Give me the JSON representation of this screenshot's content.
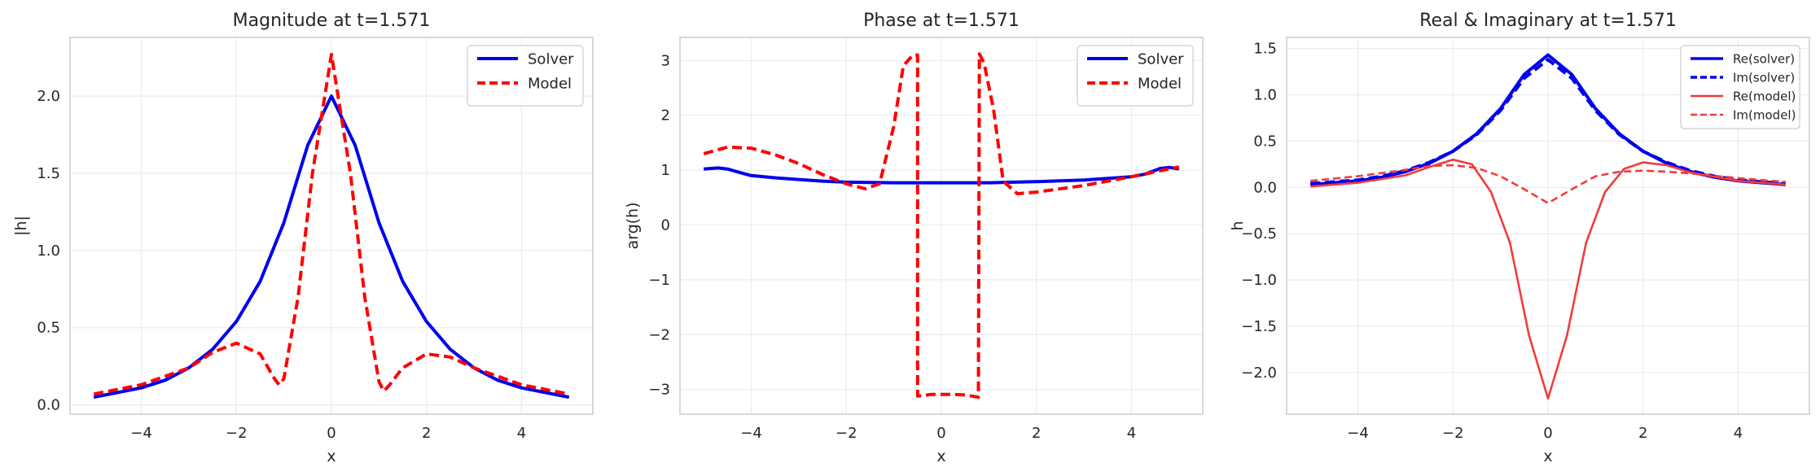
{
  "chart_data": [
    {
      "type": "line",
      "title": "Magnitude at t=1.571",
      "xlabel": "x",
      "ylabel": "|h|",
      "xlim": [
        -5.5,
        5.5
      ],
      "ylim": [
        -0.06,
        2.38
      ],
      "xticks": [
        -4,
        -2,
        0,
        2,
        4
      ],
      "xtick_labels": [
        "−4",
        "−2",
        "0",
        "2",
        "4"
      ],
      "yticks": [
        0,
        0.5,
        1,
        1.5,
        2
      ],
      "ytick_labels": [
        "0.0",
        "0.5",
        "1.0",
        "1.5",
        "2.0"
      ],
      "grid": true,
      "legend_position": "top-right",
      "series": [
        {
          "name": "Solver",
          "color": "#0000ee",
          "style": "solid",
          "x": [
            -5,
            -4,
            -3.5,
            -3,
            -2.5,
            -2,
            -1.5,
            -1,
            -0.5,
            0,
            0.5,
            1,
            1.5,
            2,
            2.5,
            3,
            3.5,
            4,
            5
          ],
          "y": [
            0.05,
            0.11,
            0.16,
            0.24,
            0.36,
            0.54,
            0.8,
            1.18,
            1.68,
            2.0,
            1.68,
            1.18,
            0.8,
            0.54,
            0.36,
            0.24,
            0.16,
            0.11,
            0.05
          ]
        },
        {
          "name": "Model",
          "color": "#ff0000",
          "style": "dashed",
          "x": [
            -5,
            -4,
            -3,
            -2.5,
            -2,
            -1.5,
            -1.2,
            -1.1,
            -1,
            -0.7,
            -0.4,
            0,
            0.4,
            0.7,
            1,
            1.1,
            1.2,
            1.5,
            2,
            2.5,
            3,
            4,
            5
          ],
          "y": [
            0.07,
            0.13,
            0.24,
            0.34,
            0.4,
            0.33,
            0.17,
            0.13,
            0.17,
            0.7,
            1.5,
            2.27,
            1.5,
            0.7,
            0.15,
            0.09,
            0.12,
            0.24,
            0.33,
            0.31,
            0.24,
            0.13,
            0.07
          ]
        }
      ]
    },
    {
      "type": "line",
      "title": "Phase at t=1.571",
      "xlabel": "x",
      "ylabel": "arg(h)",
      "xlim": [
        -5.5,
        5.5
      ],
      "ylim": [
        -3.45,
        3.42
      ],
      "xticks": [
        -4,
        -2,
        0,
        2,
        4
      ],
      "xtick_labels": [
        "−4",
        "−2",
        "0",
        "2",
        "4"
      ],
      "yticks": [
        -3,
        -2,
        -1,
        0,
        1,
        2,
        3
      ],
      "ytick_labels": [
        "−3",
        "−2",
        "−1",
        "0",
        "1",
        "2",
        "3"
      ],
      "grid": true,
      "legend_position": "top-right",
      "series": [
        {
          "name": "Solver",
          "color": "#0000ee",
          "style": "solid",
          "x": [
            -5,
            -4.7,
            -4.5,
            -4.3,
            -4,
            -3.5,
            -3,
            -2.5,
            -2,
            -1,
            0,
            1,
            2,
            3,
            3.5,
            4,
            4.3,
            4.6,
            4.8,
            5
          ],
          "y": [
            1.02,
            1.04,
            1.02,
            0.97,
            0.9,
            0.86,
            0.83,
            0.8,
            0.78,
            0.77,
            0.77,
            0.77,
            0.79,
            0.82,
            0.85,
            0.88,
            0.93,
            1.03,
            1.05,
            1.02
          ]
        },
        {
          "name": "Model",
          "color": "#ff0000",
          "style": "dashed",
          "x": [
            -5,
            -4.5,
            -4,
            -3.5,
            -3,
            -2.5,
            -2,
            -1.6,
            -1.3,
            -1.0,
            -0.8,
            -0.6,
            -0.5,
            -0.5,
            -0.2,
            0.2,
            0.5,
            0.78,
            0.8,
            0.9,
            1.1,
            1.3,
            1.6,
            2,
            3,
            4,
            5
          ],
          "y": [
            1.3,
            1.42,
            1.4,
            1.28,
            1.12,
            0.92,
            0.75,
            0.66,
            0.75,
            1.8,
            2.9,
            3.1,
            3.1,
            -3.12,
            -3.09,
            -3.09,
            -3.1,
            -3.14,
            3.12,
            2.95,
            2.1,
            0.8,
            0.57,
            0.6,
            0.72,
            0.88,
            1.06
          ]
        }
      ]
    },
    {
      "type": "line",
      "title": "Real & Imaginary at t=1.571",
      "xlabel": "x",
      "ylabel": "h",
      "xlim": [
        -5.5,
        5.5
      ],
      "ylim": [
        -2.45,
        1.62
      ],
      "xticks": [
        -4,
        -2,
        0,
        2,
        4
      ],
      "xtick_labels": [
        "−4",
        "−2",
        "0",
        "2",
        "4"
      ],
      "yticks": [
        -2,
        -1.5,
        -1,
        -0.5,
        0,
        0.5,
        1,
        1.5
      ],
      "ytick_labels": [
        "−2.0",
        "−1.5",
        "−1.0",
        "−0.5",
        "0.0",
        "0.5",
        "1.0",
        "1.5"
      ],
      "grid": true,
      "legend_position": "top-right",
      "series": [
        {
          "name": "Re(solver)",
          "color": "#0000ee",
          "style": "solid",
          "x": [
            -5,
            -4,
            -3.5,
            -3,
            -2.5,
            -2,
            -1.5,
            -1,
            -0.5,
            0,
            0.5,
            1,
            1.5,
            2,
            2.5,
            3,
            3.5,
            4,
            5
          ],
          "y": [
            0.03,
            0.07,
            0.11,
            0.17,
            0.26,
            0.39,
            0.58,
            0.85,
            1.22,
            1.43,
            1.22,
            0.85,
            0.58,
            0.39,
            0.26,
            0.17,
            0.11,
            0.07,
            0.03
          ]
        },
        {
          "name": "Im(solver)",
          "color": "#0000ee",
          "style": "dashed",
          "x": [
            -5,
            -4,
            -3.5,
            -3,
            -2.5,
            -2,
            -1.5,
            -1,
            -0.5,
            0,
            0.5,
            1,
            1.5,
            2,
            2.5,
            3,
            3.5,
            4,
            5
          ],
          "y": [
            0.04,
            0.08,
            0.12,
            0.18,
            0.27,
            0.39,
            0.57,
            0.83,
            1.18,
            1.38,
            1.18,
            0.83,
            0.57,
            0.39,
            0.27,
            0.18,
            0.12,
            0.08,
            0.04
          ]
        },
        {
          "name": "Re(model)",
          "color": "#f03c3c",
          "style": "solid",
          "x": [
            -5,
            -4,
            -3,
            -2.5,
            -2,
            -1.6,
            -1.2,
            -0.8,
            -0.4,
            0,
            0.4,
            0.8,
            1.2,
            1.6,
            2,
            2.5,
            3,
            4,
            5
          ],
          "y": [
            0.01,
            0.05,
            0.13,
            0.22,
            0.3,
            0.25,
            -0.05,
            -0.6,
            -1.6,
            -2.28,
            -1.6,
            -0.6,
            -0.05,
            0.2,
            0.27,
            0.24,
            0.16,
            0.07,
            0.03
          ]
        },
        {
          "name": "Im(model)",
          "color": "#f03c3c",
          "style": "dashed",
          "x": [
            -5,
            -4,
            -3,
            -2.5,
            -2,
            -1.5,
            -1,
            -0.5,
            0,
            0.5,
            1,
            1.5,
            2,
            2.5,
            3,
            4,
            5
          ],
          "y": [
            0.07,
            0.12,
            0.19,
            0.23,
            0.24,
            0.21,
            0.12,
            -0.02,
            -0.17,
            -0.02,
            0.12,
            0.17,
            0.18,
            0.17,
            0.15,
            0.1,
            0.06
          ]
        }
      ]
    }
  ]
}
